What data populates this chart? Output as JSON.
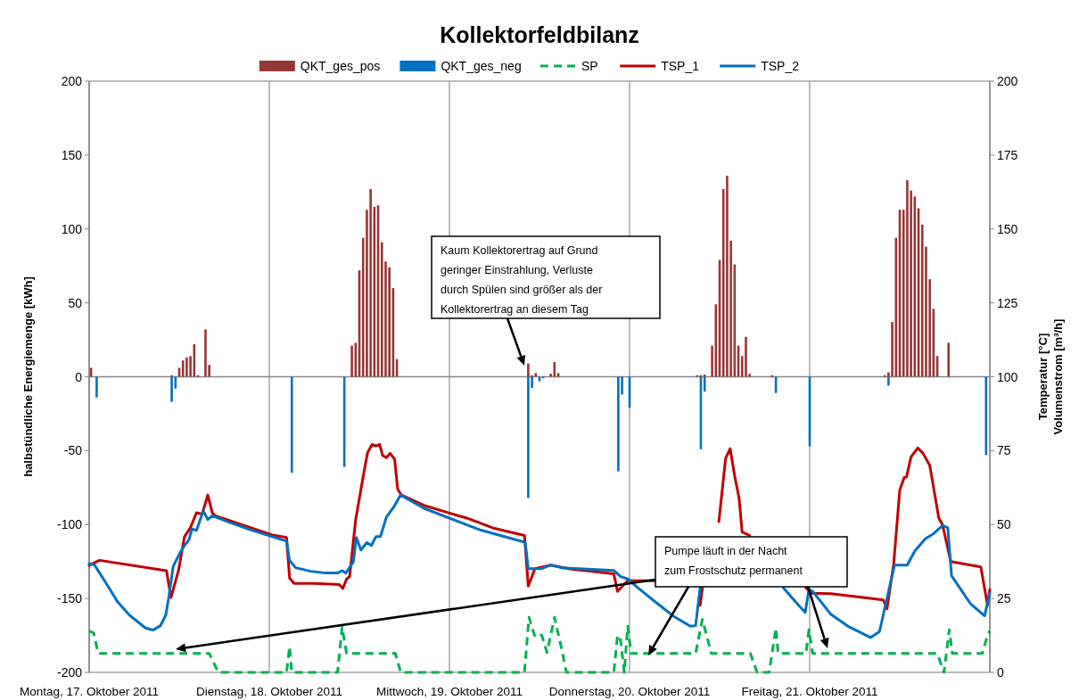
{
  "chart_data": {
    "type": "bar",
    "title": "Kollektorfeldbilanz",
    "ylabel": "halbstündliche Energiemenge [kWh]",
    "y2label": "Temperatur [°C]\nVolumenstrom [m³/h]",
    "xlim": [
      "2011-10-17T00:00",
      "2011-10-22T00:00"
    ],
    "xticks": [
      {
        "value": "2011-10-17T00:00",
        "label": "Montag, 17. Oktober 2011"
      },
      {
        "value": "2011-10-18T00:00",
        "label": "Dienstag, 18. Oktober 2011"
      },
      {
        "value": "2011-10-19T00:00",
        "label": "Mittwoch, 19. Oktober 2011"
      },
      {
        "value": "2011-10-20T00:00",
        "label": "Donnerstag, 20. Oktober 2011"
      },
      {
        "value": "2011-10-21T00:00",
        "label": "Freitag, 21. Oktober 2011"
      }
    ],
    "ylim": [
      -200,
      200
    ],
    "yticks": [
      -200,
      -150,
      -100,
      -50,
      0,
      50,
      100,
      150,
      200
    ],
    "y2lim": [
      0,
      200
    ],
    "y2ticks": [
      0,
      25,
      50,
      75,
      100,
      125,
      150,
      175,
      200
    ],
    "grid": "x",
    "legend": "top",
    "annotations": [
      "Kaum Kollektorertrag auf Grund\ngeringer Einstrahlung, Verluste\ndurch Spülen sind größer als der\nKollektorertrag an diesem Tag",
      "Pumpe läuft in der Nacht\nzum Frostschutz permanent"
    ],
    "series": [
      {
        "name": "QKT_ges_pos",
        "color": "#953735",
        "x": [
          "2011-10-17T00:15",
          "2011-10-17T11:00",
          "2011-10-17T12:00",
          "2011-10-17T12:30",
          "2011-10-17T13:00",
          "2011-10-17T13:30",
          "2011-10-17T14:00",
          "2011-10-17T14:30",
          "2011-10-17T15:30",
          "2011-10-17T16:00",
          "2011-10-18T11:00",
          "2011-10-18T11:30",
          "2011-10-18T12:00",
          "2011-10-18T12:30",
          "2011-10-18T13:00",
          "2011-10-18T13:30",
          "2011-10-18T14:00",
          "2011-10-18T14:30",
          "2011-10-18T15:00",
          "2011-10-18T15:30",
          "2011-10-18T16:00",
          "2011-10-18T16:30",
          "2011-10-18T17:00",
          "2011-10-19T10:30",
          "2011-10-19T11:00",
          "2011-10-19T11:30",
          "2011-10-19T13:30",
          "2011-10-19T14:00",
          "2011-10-19T14:30",
          "2011-10-20T09:00",
          "2011-10-20T09:30",
          "2011-10-20T10:00",
          "2011-10-20T11:00",
          "2011-10-20T11:30",
          "2011-10-20T12:00",
          "2011-10-20T12:30",
          "2011-10-20T13:00",
          "2011-10-20T13:30",
          "2011-10-20T14:00",
          "2011-10-20T14:30",
          "2011-10-20T15:00",
          "2011-10-20T15:30",
          "2011-10-20T16:00",
          "2011-10-20T19:00",
          "2011-10-21T10:00",
          "2011-10-21T10:30",
          "2011-10-21T11:00",
          "2011-10-21T11:30",
          "2011-10-21T12:00",
          "2011-10-21T12:30",
          "2011-10-21T13:00",
          "2011-10-21T13:30",
          "2011-10-21T14:00",
          "2011-10-21T14:30",
          "2011-10-21T15:00",
          "2011-10-21T15:30",
          "2011-10-21T16:00",
          "2011-10-21T16:30",
          "2011-10-21T17:00",
          "2011-10-21T18:30"
        ],
        "values": [
          6,
          1,
          6,
          11,
          13,
          14,
          22,
          1,
          32,
          8,
          21,
          23,
          72,
          94,
          113,
          127,
          115,
          116,
          91,
          78,
          74,
          60,
          12,
          9,
          1,
          2.5,
          2,
          10,
          2.5,
          1,
          1,
          1.5,
          21,
          49,
          79,
          127,
          136,
          92,
          76,
          21,
          14,
          27,
          2,
          1,
          1,
          3,
          37,
          94,
          113,
          113,
          133,
          126,
          122,
          114,
          103,
          88,
          66,
          46,
          14,
          23
        ]
      },
      {
        "name": "QKT_ges_neg",
        "color": "#0070c0",
        "x": [
          "2011-10-17T01:00",
          "2011-10-17T11:00",
          "2011-10-17T11:30",
          "2011-10-18T03:00",
          "2011-10-18T10:00",
          "2011-10-19T10:30",
          "2011-10-19T11:00",
          "2011-10-19T12:00",
          "2011-10-19T12:30",
          "2011-10-19T22:30",
          "2011-10-19T23:00",
          "2011-10-20T00:00",
          "2011-10-20T09:30",
          "2011-10-20T10:00",
          "2011-10-20T19:30",
          "2011-10-21T00:00",
          "2011-10-21T10:30",
          "2011-10-21T23:30"
        ],
        "values": [
          -14,
          -17,
          -8,
          -65,
          -61,
          -82,
          -7.5,
          -3,
          -1,
          -64,
          -12,
          -21,
          -49,
          -10,
          -11,
          -47,
          -6,
          -53
        ]
      },
      {
        "name": "SP",
        "type": "line",
        "axis": "y2",
        "color": "#00b050",
        "line_style": "dashed",
        "x": [
          "2011-10-17T00:00",
          "2011-10-17T00:36",
          "2011-10-17T01:12",
          "2011-10-17T16:00",
          "2011-10-17T17:12",
          "2011-10-18T02:18",
          "2011-10-18T02:42",
          "2011-10-18T03:00",
          "2011-10-18T09:06",
          "2011-10-18T09:42",
          "2011-10-18T10:18",
          "2011-10-18T16:48",
          "2011-10-18T17:30",
          "2011-10-19T10:00",
          "2011-10-19T10:36",
          "2011-10-19T11:24",
          "2011-10-19T12:18",
          "2011-10-19T13:00",
          "2011-10-19T14:00",
          "2011-10-19T14:54",
          "2011-10-19T15:36",
          "2011-10-19T21:54",
          "2011-10-19T22:24",
          "2011-10-19T22:48",
          "2011-10-19T23:18",
          "2011-10-19T23:45",
          "2011-10-20T00:12",
          "2011-10-20T08:48",
          "2011-10-20T09:42",
          "2011-10-20T10:54",
          "2011-10-20T16:06",
          "2011-10-20T17:00",
          "2011-10-20T18:36",
          "2011-10-20T19:30",
          "2011-10-20T19:48",
          "2011-10-20T23:30",
          "2011-10-20T23:54",
          "2011-10-21T00:24",
          "2011-10-21T17:00",
          "2011-10-21T17:54",
          "2011-10-21T18:36",
          "2011-10-21T19:00",
          "2011-10-21T23:00",
          "2011-10-21T23:42",
          "2011-10-22T00:00"
        ],
        "values": [
          14,
          13.3,
          6.4,
          6.4,
          0,
          0,
          8.7,
          0,
          0,
          15.3,
          6.4,
          6.4,
          0,
          0,
          18.6,
          12,
          12.6,
          6.7,
          18.6,
          8.5,
          0,
          0,
          12.6,
          10.9,
          0,
          15.6,
          6.4,
          6.4,
          17.9,
          6.4,
          6.4,
          0,
          0,
          15,
          6.4,
          6.4,
          14.4,
          6.4,
          6.4,
          0,
          14.4,
          6.4,
          6.4,
          12.6,
          14
        ]
      },
      {
        "name": "TSP_1",
        "type": "line",
        "axis": "y2",
        "color": "#c00000",
        "x": [
          "2011-10-17T00:00",
          "2011-10-17T00:48",
          "2011-10-17T01:24",
          "2011-10-17T10:18",
          "2011-10-17T10:54",
          "2011-10-17T11:54",
          "2011-10-17T12:42",
          "2011-10-17T13:30",
          "2011-10-17T14:18",
          "2011-10-17T15:03",
          "2011-10-17T15:48",
          "2011-10-17T16:24",
          "2011-10-17T16:48",
          "2011-10-18T00:24",
          "2011-10-18T02:18",
          "2011-10-18T02:42",
          "2011-10-18T03:18",
          "2011-10-18T05:54",
          "2011-10-18T09:18",
          "2011-10-18T09:48",
          "2011-10-18T10:18",
          "2011-10-18T10:42",
          "2011-10-18T11:30",
          "2011-10-18T12:36",
          "2011-10-18T13:06",
          "2011-10-18T13:42",
          "2011-10-18T14:12",
          "2011-10-18T14:42",
          "2011-10-18T15:06",
          "2011-10-18T15:36",
          "2011-10-18T16:06",
          "2011-10-18T16:42",
          "2011-10-18T17:06",
          "2011-10-18T17:36",
          "2011-10-18T20:36",
          "2011-10-19T00:30",
          "2011-10-19T02:18",
          "2011-10-19T06:00",
          "2011-10-19T10:00",
          "2011-10-19T10:30",
          "2011-10-19T11:24",
          "2011-10-19T13:30",
          "2011-10-19T15:48",
          "2011-10-19T21:54",
          "2011-10-19T22:24",
          "2011-10-19T23:03",
          "2011-10-19T23:45",
          "2011-10-20T00:42",
          "2011-10-20T03:24",
          "2011-10-20T06:00",
          "2011-10-20T09:24",
          "2011-10-20T09:42",
          "2011-10-20T10:12",
          "2011-10-20T11:54",
          "2011-10-20T12:48",
          "2011-10-20T13:24",
          "2011-10-20T14:00",
          "2011-10-20T14:36",
          "2011-10-20T15:00",
          "2011-10-20T16:00",
          "2011-10-20T20:00",
          "2011-10-20T23:30",
          "2011-10-21T00:12",
          "2011-10-21T02:48",
          "2011-10-21T09:48",
          "2011-10-21T10:18",
          "2011-10-21T11:12",
          "2011-10-21T12:00",
          "2011-10-21T12:36",
          "2011-10-21T12:54",
          "2011-10-21T13:30",
          "2011-10-21T14:24",
          "2011-10-21T15:06",
          "2011-10-21T16:00",
          "2011-10-21T17:12",
          "2011-10-21T17:42",
          "2011-10-21T18:48",
          "2011-10-21T22:48",
          "2011-10-21T23:42",
          "2011-10-22T00:00"
        ],
        "values": [
          36.2,
          37.2,
          37.9,
          34.4,
          25.3,
          34.4,
          45.9,
          49,
          54,
          53.5,
          60,
          54,
          53,
          46.5,
          45.6,
          31.9,
          30.1,
          30.1,
          29.7,
          28.4,
          31.6,
          32.4,
          51.5,
          67.6,
          74.4,
          77.1,
          76.6,
          77.1,
          73.4,
          72.6,
          74.1,
          72.1,
          62,
          60,
          56.5,
          53.5,
          52.2,
          48.7,
          46.3,
          29.2,
          35.1,
          36.3,
          35.1,
          33.3,
          27.4,
          29.2,
          31,
          31,
          31,
          null,
          22.7,
          28.6,
          null,
          51,
          72.4,
          75.7,
          66.5,
          58.8,
          47.5,
          46.3,
          null,
          28.6,
          26.8,
          26.6,
          24.5,
          21.5,
          36.9,
          61.7,
          65.9,
          66.1,
          72.9,
          75.9,
          74.1,
          70,
          52.2,
          49.9,
          37.5,
          35.7,
          22.7,
          28
        ]
      },
      {
        "name": "TSP_2",
        "type": "line",
        "axis": "y2",
        "color": "#0070c0",
        "x": [
          "2011-10-17T00:00",
          "2011-10-17T00:42",
          "2011-10-17T02:12",
          "2011-10-17T03:48",
          "2011-10-17T05:18",
          "2011-10-17T07:30",
          "2011-10-17T08:30",
          "2011-10-17T09:30",
          "2011-10-17T10:12",
          "2011-10-17T10:36",
          "2011-10-17T11:12",
          "2011-10-17T12:06",
          "2011-10-17T12:42",
          "2011-10-17T13:18",
          "2011-10-17T13:42",
          "2011-10-17T14:18",
          "2011-10-17T15:12",
          "2011-10-17T15:48",
          "2011-10-17T16:24",
          "2011-10-17T18:24",
          "2011-10-17T21:12",
          "2011-10-18T00:24",
          "2011-10-18T02:18",
          "2011-10-18T02:42",
          "2011-10-18T03:30",
          "2011-10-18T05:30",
          "2011-10-18T07:30",
          "2011-10-18T09:06",
          "2011-10-18T09:42",
          "2011-10-18T10:12",
          "2011-10-18T11:12",
          "2011-10-18T11:36",
          "2011-10-18T12:12",
          "2011-10-18T13:00",
          "2011-10-18T13:36",
          "2011-10-18T14:12",
          "2011-10-18T14:48",
          "2011-10-18T15:36",
          "2011-10-18T16:36",
          "2011-10-18T17:30",
          "2011-10-18T20:36",
          "2011-10-19T00:42",
          "2011-10-19T04:12",
          "2011-10-19T09:48",
          "2011-10-19T10:06",
          "2011-10-19T10:30",
          "2011-10-19T12:18",
          "2011-10-19T13:30",
          "2011-10-19T14:54",
          "2011-10-19T21:54",
          "2011-10-19T22:48",
          "2011-10-19T23:45",
          "2011-10-20T01:06",
          "2011-10-20T03:24",
          "2011-10-20T05:48",
          "2011-10-20T08:06",
          "2011-10-20T08:48",
          "2011-10-20T09:24",
          "2011-10-20T15:00",
          "2011-10-20T20:30",
          "2011-10-20T22:06",
          "2011-10-20T23:24",
          "2011-10-20T23:54",
          "2011-10-21T00:24",
          "2011-10-21T02:48",
          "2011-10-21T05:06",
          "2011-10-21T08:06",
          "2011-10-21T09:18",
          "2011-10-21T10:12",
          "2011-10-21T11:18",
          "2011-10-21T13:00",
          "2011-10-21T14:00",
          "2011-10-21T15:24",
          "2011-10-21T16:30",
          "2011-10-21T17:42",
          "2011-10-21T18:24",
          "2011-10-21T18:54",
          "2011-10-21T21:24",
          "2011-10-21T23:18",
          "2011-10-22T00:00"
        ],
        "values": [
          36.8,
          36.4,
          30.4,
          23.8,
          19.5,
          15,
          14.3,
          15.8,
          19.3,
          25.3,
          35.9,
          40.4,
          42.9,
          44.9,
          48.5,
          48,
          54.7,
          51.7,
          53,
          51,
          48.5,
          45.9,
          44.4,
          37.9,
          35.4,
          34.2,
          33.6,
          33.6,
          34.4,
          33.6,
          37.4,
          45.6,
          41.4,
          43.9,
          42.9,
          45.9,
          45.9,
          52.5,
          56,
          60,
          55.5,
          51.5,
          48.1,
          44.2,
          44,
          35.1,
          35.1,
          36.3,
          35.4,
          34.5,
          32.4,
          31.6,
          28.6,
          23.9,
          19.1,
          15.6,
          15.8,
          28.6,
          null,
          28.6,
          23.9,
          20.3,
          28,
          27.4,
          19.7,
          15.6,
          11.8,
          13.8,
          23.9,
          36.3,
          36.3,
          41,
          45.2,
          46.9,
          49.7,
          48.9,
          32.7,
          23.3,
          19.1,
          26.8
        ]
      }
    ]
  }
}
